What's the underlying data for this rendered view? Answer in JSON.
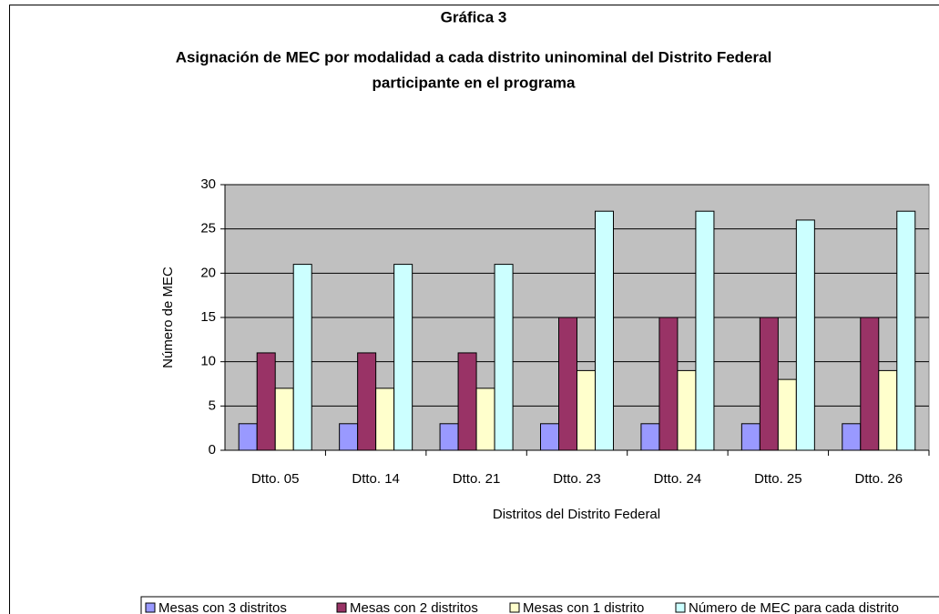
{
  "chart_data": {
    "type": "bar",
    "title": "Gráfica 3",
    "subtitle": [
      "Asignación de MEC por modalidad a cada distrito uninominal del Distrito Federal",
      "participante en el programa"
    ],
    "x_label": "Distritos del Distrito Federal",
    "y_label": "Número de MEC",
    "categories": [
      "Dtto. 05",
      "Dtto. 14",
      "Dtto. 21",
      "Dtto. 23",
      "Dtto. 24",
      "Dtto. 25",
      "Dtto. 26"
    ],
    "series": [
      {
        "name": "Mesas con 3 distritos",
        "color": "#9999ff",
        "values": [
          3,
          3,
          3,
          3,
          3,
          3,
          3
        ]
      },
      {
        "name": "Mesas con 2 distritos",
        "color": "#993366",
        "values": [
          11,
          11,
          11,
          15,
          15,
          15,
          15
        ]
      },
      {
        "name": "Mesas con 1 distrito",
        "color": "#ffffcc",
        "values": [
          7,
          7,
          7,
          9,
          9,
          8,
          9
        ]
      },
      {
        "name": "Número de MEC para cada distrito",
        "color": "#ccffff",
        "values": [
          21,
          21,
          21,
          27,
          27,
          26,
          27
        ]
      }
    ],
    "ylim": [
      0,
      30
    ],
    "yticks": [
      0,
      5,
      10,
      15,
      20,
      25,
      30
    ],
    "grid": true,
    "legend": "bottom"
  }
}
